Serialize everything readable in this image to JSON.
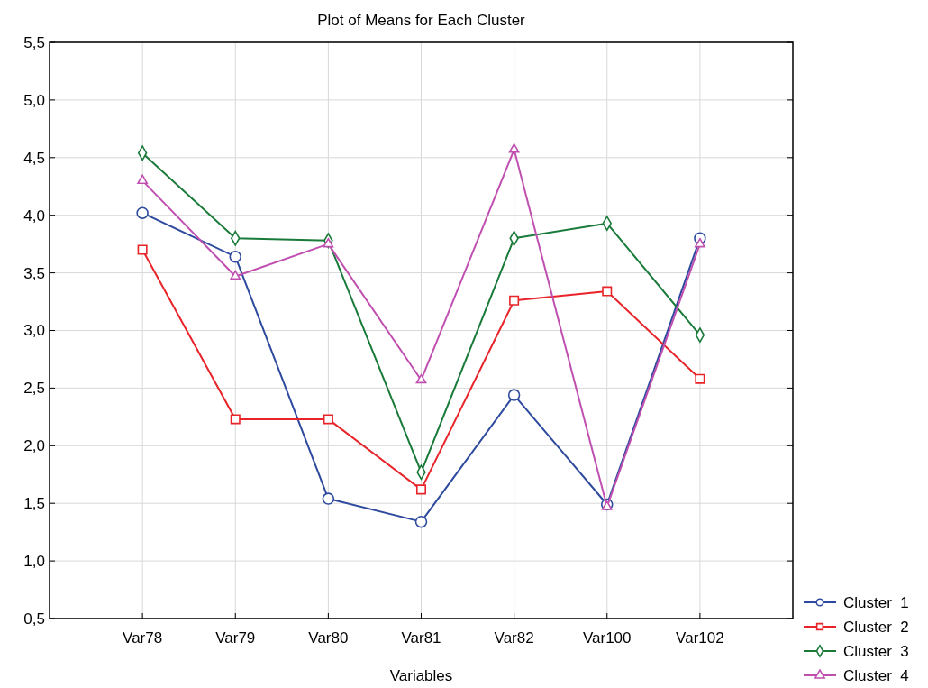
{
  "chart_data": {
    "type": "line",
    "title": "Plot of Means for Each Cluster",
    "xlabel": "Variables",
    "categories": [
      "Var78",
      "Var79",
      "Var80",
      "Var81",
      "Var82",
      "Var100",
      "Var102"
    ],
    "series": [
      {
        "name": "Cluster  1",
        "color": "#2e4a9e",
        "marker": "circle",
        "values": [
          4.02,
          3.64,
          1.54,
          1.34,
          2.44,
          1.49,
          3.8
        ]
      },
      {
        "name": "Cluster  2",
        "color": "#e8242a",
        "marker": "square",
        "values": [
          3.7,
          2.23,
          2.23,
          1.62,
          3.26,
          3.34,
          2.58
        ]
      },
      {
        "name": "Cluster  3",
        "color": "#1a7a3a",
        "marker": "diamond",
        "values": [
          4.54,
          3.8,
          3.78,
          1.77,
          3.8,
          3.93,
          2.96
        ]
      },
      {
        "name": "Cluster  4",
        "color": "#c050b0",
        "marker": "triangle",
        "values": [
          4.3,
          3.47,
          3.75,
          2.57,
          4.57,
          1.47,
          3.75
        ]
      }
    ],
    "ylim": [
      0.5,
      5.5
    ],
    "yticks": [
      {
        "value": 0.5,
        "label": "0,5"
      },
      {
        "value": 1,
        "label": "1,0"
      },
      {
        "value": 1.5,
        "label": "1,5"
      },
      {
        "value": 2,
        "label": "2,0"
      },
      {
        "value": 2.5,
        "label": "2,5"
      },
      {
        "value": 3,
        "label": "3,0"
      },
      {
        "value": 3.5,
        "label": "3,5"
      },
      {
        "value": 4,
        "label": "4,0"
      },
      {
        "value": 4.5,
        "label": "4,5"
      },
      {
        "value": 5,
        "label": "5,0"
      },
      {
        "value": 5.5,
        "label": "5,5"
      }
    ],
    "grid": true,
    "legend": "bottom right",
    "line_style": "solid"
  }
}
